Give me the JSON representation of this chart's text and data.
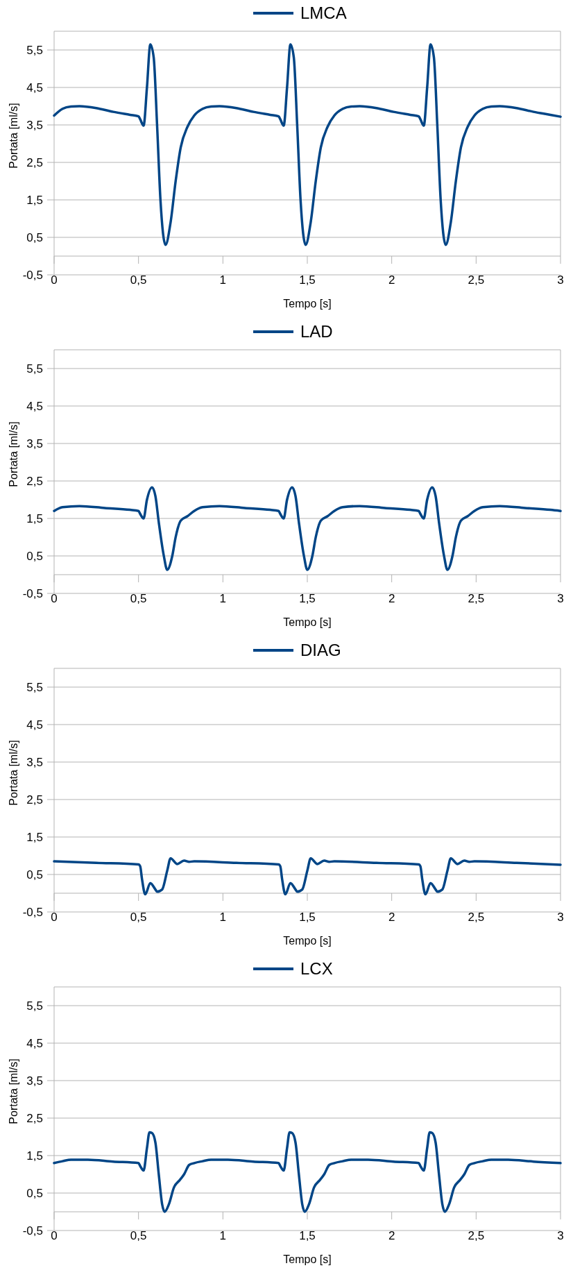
{
  "chart_data": [
    {
      "type": "line",
      "xlabel": "Tempo [s]",
      "ylabel": "Portata [ml/s]",
      "xlim": [
        0,
        3
      ],
      "ylim": [
        -0.5,
        6
      ],
      "xticks": [
        0,
        {
          "value": 0.5,
          "label": "0,5"
        },
        1,
        {
          "value": 1.5,
          "label": "1,5"
        },
        2,
        {
          "value": 2.5,
          "label": "2,5"
        },
        3
      ],
      "yticks": [
        {
          "value": -0.5,
          "label": "-0,5"
        },
        {
          "value": 0.5,
          "label": "0,5"
        },
        {
          "value": 1.5,
          "label": "1,5"
        },
        {
          "value": 2.5,
          "label": "2,5"
        },
        {
          "value": 3.5,
          "label": "3,5"
        },
        {
          "value": 4.5,
          "label": "4,5"
        },
        {
          "value": 5.5,
          "label": "5,5"
        }
      ],
      "grid": "y",
      "legend": "top",
      "series": [
        {
          "name": "LMCA",
          "color": "#004586",
          "x": [
            0,
            0.05,
            0.1,
            0.15,
            0.25,
            0.35,
            0.45,
            0.5,
            0.51,
            0.53,
            0.55,
            0.57,
            0.59,
            0.61,
            0.63,
            0.66,
            0.69,
            0.72,
            0.75,
            0.79,
            0.83,
            0.88,
            0.93,
            0.98,
            1.08,
            1.18,
            1.28,
            1.33,
            1.34,
            1.36,
            1.38,
            1.4,
            1.42,
            1.44,
            1.46,
            1.49,
            1.52,
            1.55,
            1.58,
            1.62,
            1.66,
            1.71,
            1.76,
            1.81,
            1.91,
            2.01,
            2.11,
            2.16,
            2.17,
            2.19,
            2.21,
            2.23,
            2.25,
            2.27,
            2.29,
            2.32,
            2.35,
            2.38,
            2.41,
            2.45,
            2.49,
            2.54,
            2.59,
            2.64,
            2.74,
            2.84,
            2.94,
            3.0
          ],
          "values": [
            3.75,
            3.93,
            3.99,
            4.0,
            3.95,
            3.85,
            3.77,
            3.73,
            3.65,
            3.48,
            4.5,
            5.65,
            5.3,
            3.5,
            1.5,
            0.3,
            0.9,
            2.0,
            2.9,
            3.45,
            3.75,
            3.93,
            3.99,
            4.0,
            3.95,
            3.85,
            3.77,
            3.73,
            3.65,
            3.48,
            4.5,
            5.65,
            5.3,
            3.5,
            1.5,
            0.3,
            0.9,
            2.0,
            2.9,
            3.45,
            3.75,
            3.93,
            3.99,
            4.0,
            3.95,
            3.85,
            3.77,
            3.73,
            3.65,
            3.48,
            4.5,
            5.65,
            5.3,
            3.5,
            1.5,
            0.3,
            0.9,
            2.0,
            2.9,
            3.45,
            3.75,
            3.93,
            3.99,
            4.0,
            3.95,
            3.85,
            3.77,
            3.72
          ]
        }
      ]
    },
    {
      "type": "line",
      "xlabel": "Tempo [s]",
      "ylabel": "Portata [ml/s]",
      "xlim": [
        0,
        3
      ],
      "ylim": [
        -0.5,
        6
      ],
      "xticks": [
        0,
        {
          "value": 0.5,
          "label": "0,5"
        },
        1,
        {
          "value": 1.5,
          "label": "1,5"
        },
        2,
        {
          "value": 2.5,
          "label": "2,5"
        },
        3
      ],
      "yticks": [
        {
          "value": -0.5,
          "label": "-0,5"
        },
        {
          "value": 0.5,
          "label": "0,5"
        },
        {
          "value": 1.5,
          "label": "1,5"
        },
        {
          "value": 2.5,
          "label": "2,5"
        },
        {
          "value": 3.5,
          "label": "3,5"
        },
        {
          "value": 4.5,
          "label": "4,5"
        },
        {
          "value": 5.5,
          "label": "5,5"
        }
      ],
      "grid": "y",
      "legend": "top",
      "series": [
        {
          "name": "LAD",
          "color": "#004586",
          "x": [
            0,
            0.05,
            0.15,
            0.3,
            0.45,
            0.5,
            0.51,
            0.53,
            0.55,
            0.58,
            0.6,
            0.62,
            0.65,
            0.67,
            0.7,
            0.72,
            0.75,
            0.79,
            0.83,
            0.88,
            0.98,
            1.13,
            1.28,
            1.33,
            1.34,
            1.36,
            1.38,
            1.41,
            1.43,
            1.45,
            1.48,
            1.5,
            1.53,
            1.55,
            1.58,
            1.62,
            1.66,
            1.71,
            1.81,
            1.96,
            2.11,
            2.16,
            2.17,
            2.19,
            2.21,
            2.24,
            2.26,
            2.28,
            2.31,
            2.33,
            2.36,
            2.38,
            2.41,
            2.45,
            2.49,
            2.54,
            2.64,
            2.79,
            2.94,
            3.0
          ],
          "values": [
            1.7,
            1.8,
            1.83,
            1.78,
            1.73,
            1.7,
            1.62,
            1.5,
            2.0,
            2.33,
            2.1,
            1.4,
            0.5,
            0.13,
            0.5,
            1.0,
            1.44,
            1.56,
            1.7,
            1.8,
            1.83,
            1.78,
            1.73,
            1.7,
            1.62,
            1.5,
            2.0,
            2.33,
            2.1,
            1.4,
            0.5,
            0.13,
            0.5,
            1.0,
            1.44,
            1.56,
            1.7,
            1.8,
            1.83,
            1.78,
            1.73,
            1.7,
            1.62,
            1.5,
            2.0,
            2.33,
            2.1,
            1.4,
            0.5,
            0.13,
            0.5,
            1.0,
            1.44,
            1.56,
            1.7,
            1.8,
            1.83,
            1.78,
            1.73,
            1.7
          ]
        }
      ]
    },
    {
      "type": "line",
      "xlabel": "Tempo [s]",
      "ylabel": "Portata [ml/s]",
      "xlim": [
        0,
        3
      ],
      "ylim": [
        -0.5,
        6
      ],
      "xticks": [
        0,
        {
          "value": 0.5,
          "label": "0,5"
        },
        1,
        {
          "value": 1.5,
          "label": "1,5"
        },
        2,
        {
          "value": 2.5,
          "label": "2,5"
        },
        3
      ],
      "yticks": [
        {
          "value": -0.5,
          "label": "-0,5"
        },
        {
          "value": 0.5,
          "label": "0,5"
        },
        {
          "value": 1.5,
          "label": "1,5"
        },
        {
          "value": 2.5,
          "label": "2,5"
        },
        {
          "value": 3.5,
          "label": "3,5"
        },
        {
          "value": 4.5,
          "label": "4,5"
        },
        {
          "value": 5.5,
          "label": "5,5"
        }
      ],
      "grid": "y",
      "legend": "top",
      "series": [
        {
          "name": "DIAG",
          "color": "#004586",
          "x": [
            0,
            0.25,
            0.5,
            0.51,
            0.52,
            0.54,
            0.57,
            0.6,
            0.61,
            0.64,
            0.67,
            0.69,
            0.73,
            0.77,
            0.8,
            0.83,
            1.08,
            1.33,
            1.34,
            1.35,
            1.37,
            1.4,
            1.43,
            1.44,
            1.47,
            1.5,
            1.52,
            1.56,
            1.6,
            1.63,
            1.66,
            1.91,
            2.16,
            2.17,
            2.18,
            2.2,
            2.23,
            2.26,
            2.27,
            2.3,
            2.33,
            2.35,
            2.39,
            2.43,
            2.46,
            2.49,
            2.74,
            3.0
          ],
          "values": [
            0.85,
            0.81,
            0.77,
            0.72,
            0.4,
            -0.03,
            0.27,
            0.1,
            0.04,
            0.1,
            0.6,
            0.93,
            0.78,
            0.87,
            0.84,
            0.85,
            0.81,
            0.77,
            0.72,
            0.4,
            -0.03,
            0.27,
            0.1,
            0.04,
            0.1,
            0.6,
            0.93,
            0.78,
            0.87,
            0.84,
            0.85,
            0.81,
            0.77,
            0.72,
            0.4,
            -0.03,
            0.27,
            0.1,
            0.04,
            0.1,
            0.6,
            0.93,
            0.78,
            0.87,
            0.84,
            0.85,
            0.81,
            0.76
          ]
        }
      ]
    },
    {
      "type": "line",
      "xlabel": "Tempo [s]",
      "ylabel": "Portata [ml/s]",
      "xlim": [
        0,
        3
      ],
      "ylim": [
        -0.5,
        6
      ],
      "xticks": [
        0,
        {
          "value": 0.5,
          "label": "0,5"
        },
        1,
        {
          "value": 1.5,
          "label": "1,5"
        },
        2,
        {
          "value": 2.5,
          "label": "2,5"
        },
        3
      ],
      "yticks": [
        {
          "value": -0.5,
          "label": "-0,5"
        },
        {
          "value": 0.5,
          "label": "0,5"
        },
        {
          "value": 1.5,
          "label": "1,5"
        },
        {
          "value": 2.5,
          "label": "2,5"
        },
        {
          "value": 3.5,
          "label": "3,5"
        },
        {
          "value": 4.5,
          "label": "4,5"
        },
        {
          "value": 5.5,
          "label": "5,5"
        }
      ],
      "grid": "y",
      "legend": "top",
      "series": [
        {
          "name": "LCX",
          "color": "#004586",
          "x": [
            0,
            0.05,
            0.1,
            0.2,
            0.35,
            0.5,
            0.51,
            0.53,
            0.55,
            0.565,
            0.58,
            0.6,
            0.62,
            0.64,
            0.655,
            0.68,
            0.71,
            0.745,
            0.77,
            0.8,
            0.83,
            0.88,
            0.93,
            1.03,
            1.18,
            1.33,
            1.34,
            1.36,
            1.38,
            1.395,
            1.41,
            1.43,
            1.45,
            1.47,
            1.485,
            1.51,
            1.54,
            1.575,
            1.6,
            1.63,
            1.66,
            1.71,
            1.76,
            1.86,
            2.01,
            2.16,
            2.17,
            2.19,
            2.21,
            2.225,
            2.24,
            2.26,
            2.28,
            2.3,
            2.315,
            2.34,
            2.37,
            2.405,
            2.43,
            2.46,
            2.49,
            2.54,
            2.59,
            2.69,
            2.84,
            3.0
          ],
          "values": [
            1.3,
            1.35,
            1.39,
            1.39,
            1.34,
            1.3,
            1.22,
            1.1,
            1.7,
            2.12,
            2.1,
            1.85,
            1.0,
            0.2,
            0.0,
            0.2,
            0.65,
            0.85,
            1.0,
            1.25,
            1.3,
            1.35,
            1.39,
            1.39,
            1.34,
            1.3,
            1.22,
            1.1,
            1.7,
            2.12,
            2.1,
            1.85,
            1.0,
            0.2,
            0.0,
            0.2,
            0.65,
            0.85,
            1.0,
            1.25,
            1.3,
            1.35,
            1.39,
            1.39,
            1.34,
            1.3,
            1.22,
            1.1,
            1.7,
            2.12,
            2.1,
            1.85,
            1.0,
            0.2,
            0.0,
            0.2,
            0.65,
            0.85,
            1.0,
            1.25,
            1.3,
            1.35,
            1.39,
            1.39,
            1.34,
            1.3
          ]
        }
      ]
    }
  ]
}
